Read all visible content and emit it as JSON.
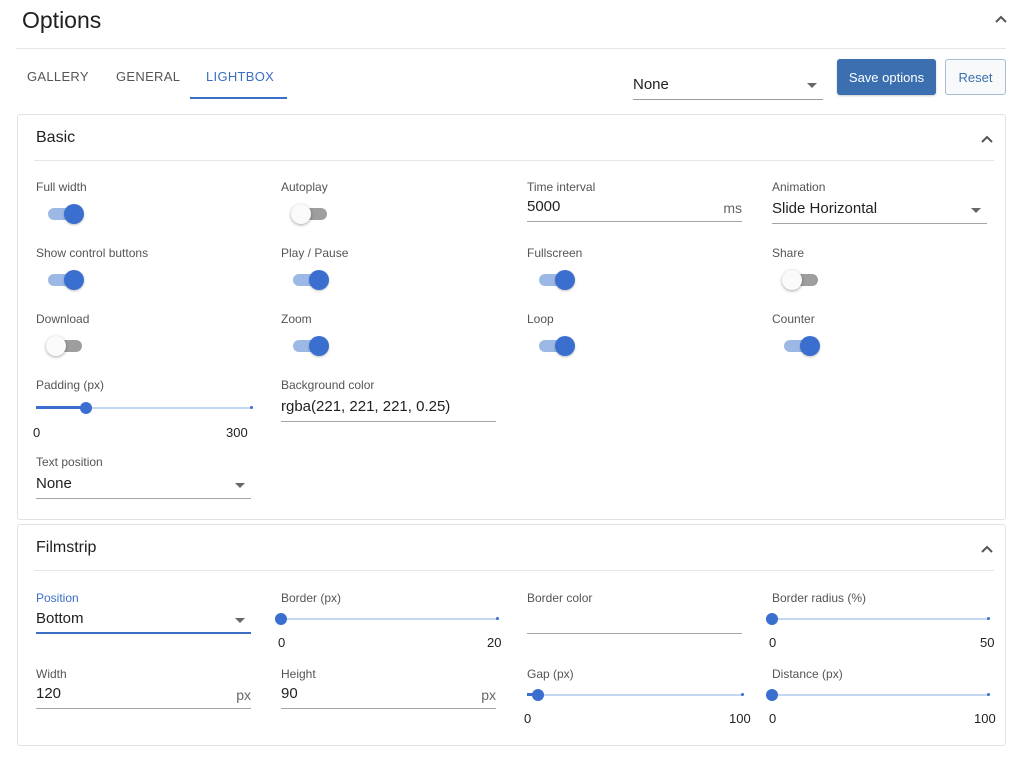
{
  "page": {
    "title": "Options"
  },
  "tabs": [
    {
      "label": "GALLERY"
    },
    {
      "label": "GENERAL"
    },
    {
      "label": "LIGHTBOX"
    }
  ],
  "toolbar": {
    "preset_value": "None",
    "save_label": "Save options",
    "reset_label": "Reset"
  },
  "basic": {
    "title": "Basic",
    "full_width": {
      "label": "Full width",
      "on": true
    },
    "autoplay": {
      "label": "Autoplay",
      "on": false
    },
    "time_interval": {
      "label": "Time interval",
      "value": "5000",
      "unit": "ms"
    },
    "animation": {
      "label": "Animation",
      "value": "Slide Horizontal"
    },
    "show_control_buttons": {
      "label": "Show control buttons",
      "on": true
    },
    "play_pause": {
      "label": "Play / Pause",
      "on": true
    },
    "fullscreen": {
      "label": "Fullscreen",
      "on": true
    },
    "share": {
      "label": "Share",
      "on": false
    },
    "download": {
      "label": "Download",
      "on": false
    },
    "zoom": {
      "label": "Zoom",
      "on": true
    },
    "loop": {
      "label": "Loop",
      "on": true
    },
    "counter": {
      "label": "Counter",
      "on": true
    },
    "padding": {
      "label": "Padding (px)",
      "min": "0",
      "max": "300",
      "value": 70
    },
    "background_color": {
      "label": "Background color",
      "value": "rgba(221, 221, 221, 0.25)"
    },
    "text_position": {
      "label": "Text position",
      "value": "None"
    }
  },
  "filmstrip": {
    "title": "Filmstrip",
    "position": {
      "label": "Position",
      "value": "Bottom"
    },
    "border": {
      "label": "Border (px)",
      "min": "0",
      "max": "20",
      "value": 0
    },
    "border_color": {
      "label": "Border color",
      "value": ""
    },
    "border_radius": {
      "label": "Border radius (%)",
      "min": "0",
      "max": "50",
      "value": 0
    },
    "width": {
      "label": "Width",
      "value": "120",
      "unit": "px"
    },
    "height": {
      "label": "Height",
      "value": "90",
      "unit": "px"
    },
    "gap": {
      "label": "Gap (px)",
      "min": "0",
      "max": "100",
      "value": 5
    },
    "distance": {
      "label": "Distance (px)",
      "min": "0",
      "max": "100",
      "value": 0
    }
  },
  "colors": {
    "accent": "#3a6fd0",
    "primary_button": "#3b6fb0",
    "toggle_off_track": "#9e9e9e"
  }
}
